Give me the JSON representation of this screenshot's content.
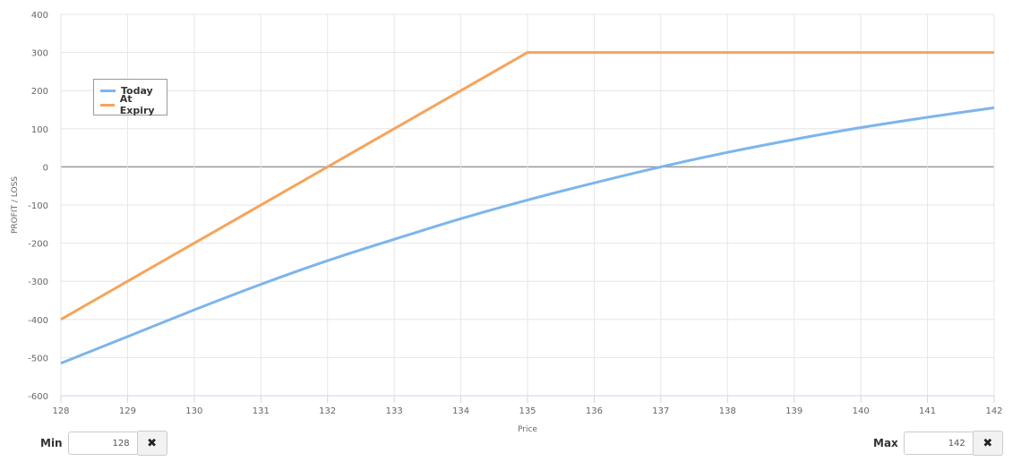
{
  "chart_data": {
    "type": "line",
    "xlabel": "Price",
    "ylabel": "PROFIT / LOSS",
    "xlim": [
      128,
      142
    ],
    "ylim": [
      -600,
      400
    ],
    "x_ticks": [
      128,
      129,
      130,
      131,
      132,
      133,
      134,
      135,
      136,
      137,
      138,
      139,
      140,
      141,
      142
    ],
    "y_ticks": [
      400,
      300,
      200,
      100,
      0,
      -100,
      -200,
      -300,
      -400,
      -500,
      -600
    ],
    "grid": true,
    "legend_position": "top-left",
    "series": [
      {
        "name": "Today",
        "color": "#7cb5ec",
        "x": [
          128,
          129,
          130,
          131,
          132,
          133,
          134,
          135,
          136,
          137,
          138,
          139,
          140,
          141,
          142
        ],
        "y": [
          -515,
          -445,
          -375,
          -308,
          -246,
          -190,
          -136,
          -87,
          -42,
          0,
          38,
          72,
          103,
          130,
          155
        ]
      },
      {
        "name": "At Expiry",
        "color": "#f7a35c",
        "x": [
          128,
          135,
          142
        ],
        "y": [
          -400,
          300,
          300
        ]
      }
    ]
  },
  "controls": {
    "min_label": "Min",
    "min_value": "128",
    "max_label": "Max",
    "max_value": "142",
    "clear_icon": "✖"
  }
}
